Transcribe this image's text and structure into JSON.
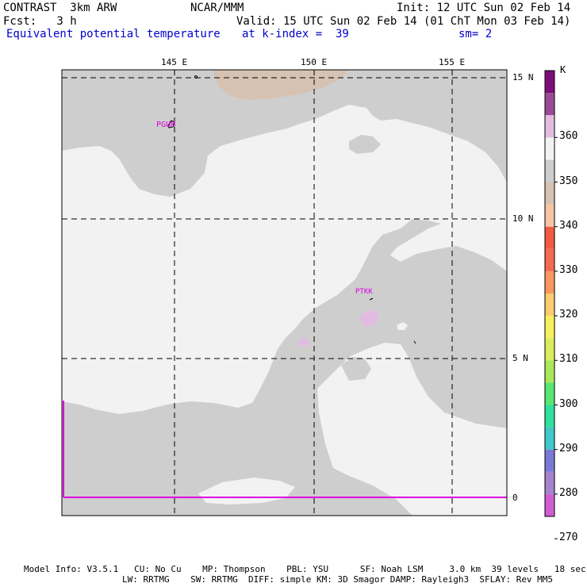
{
  "header": {
    "model": "CONTRAST  3km ARW",
    "org": "NCAR/MMM",
    "init": "Init: 12 UTC Sun 02 Feb 14",
    "fcst": "Fcst:   3 h",
    "valid": "Valid: 15 UTC Sun 02 Feb 14 (01 ChT Mon 03 Feb 14)",
    "field": "Equivalent potential temperature",
    "level": "at k-index =  39",
    "smooth": "sm= 2"
  },
  "map": {
    "lon_labels": [
      "145 E",
      "150 E",
      "155 E"
    ],
    "lat_labels": [
      "15 N",
      "10 N",
      "5 N",
      "0"
    ],
    "stations": [
      "PGUM",
      "PTKK"
    ]
  },
  "colorbar": {
    "unit": "K",
    "ticks": [
      "360",
      "350",
      "340",
      "330",
      "320",
      "310",
      "300",
      "290",
      "280",
      "270"
    ],
    "colors": [
      "#ce5ed2",
      "#a684cc",
      "#7a7ad6",
      "#3fc9c9",
      "#32e0a0",
      "#58e672",
      "#a8e85a",
      "#d8ec5e",
      "#f6f05e",
      "#fccc70",
      "#f89860",
      "#f56a50",
      "#f45a42",
      "#f6c4a6",
      "#d6c2b2",
      "#cecece",
      "#f2f2f2",
      "#e2bce0",
      "#9a4a94",
      "#7c0e7c"
    ]
  },
  "footer": {
    "line1": "Model Info: V3.5.1   CU: No Cu    MP: Thompson    PBL: YSU      SF: Noah LSM     3.0 km  39 levels   18 sec",
    "line2": "LW: RRTMG    SW: RRTMG  DIFF: simple KM: 3D Smagor DAMP: Rayleigh3  SFLAY: Rev MM5"
  }
}
